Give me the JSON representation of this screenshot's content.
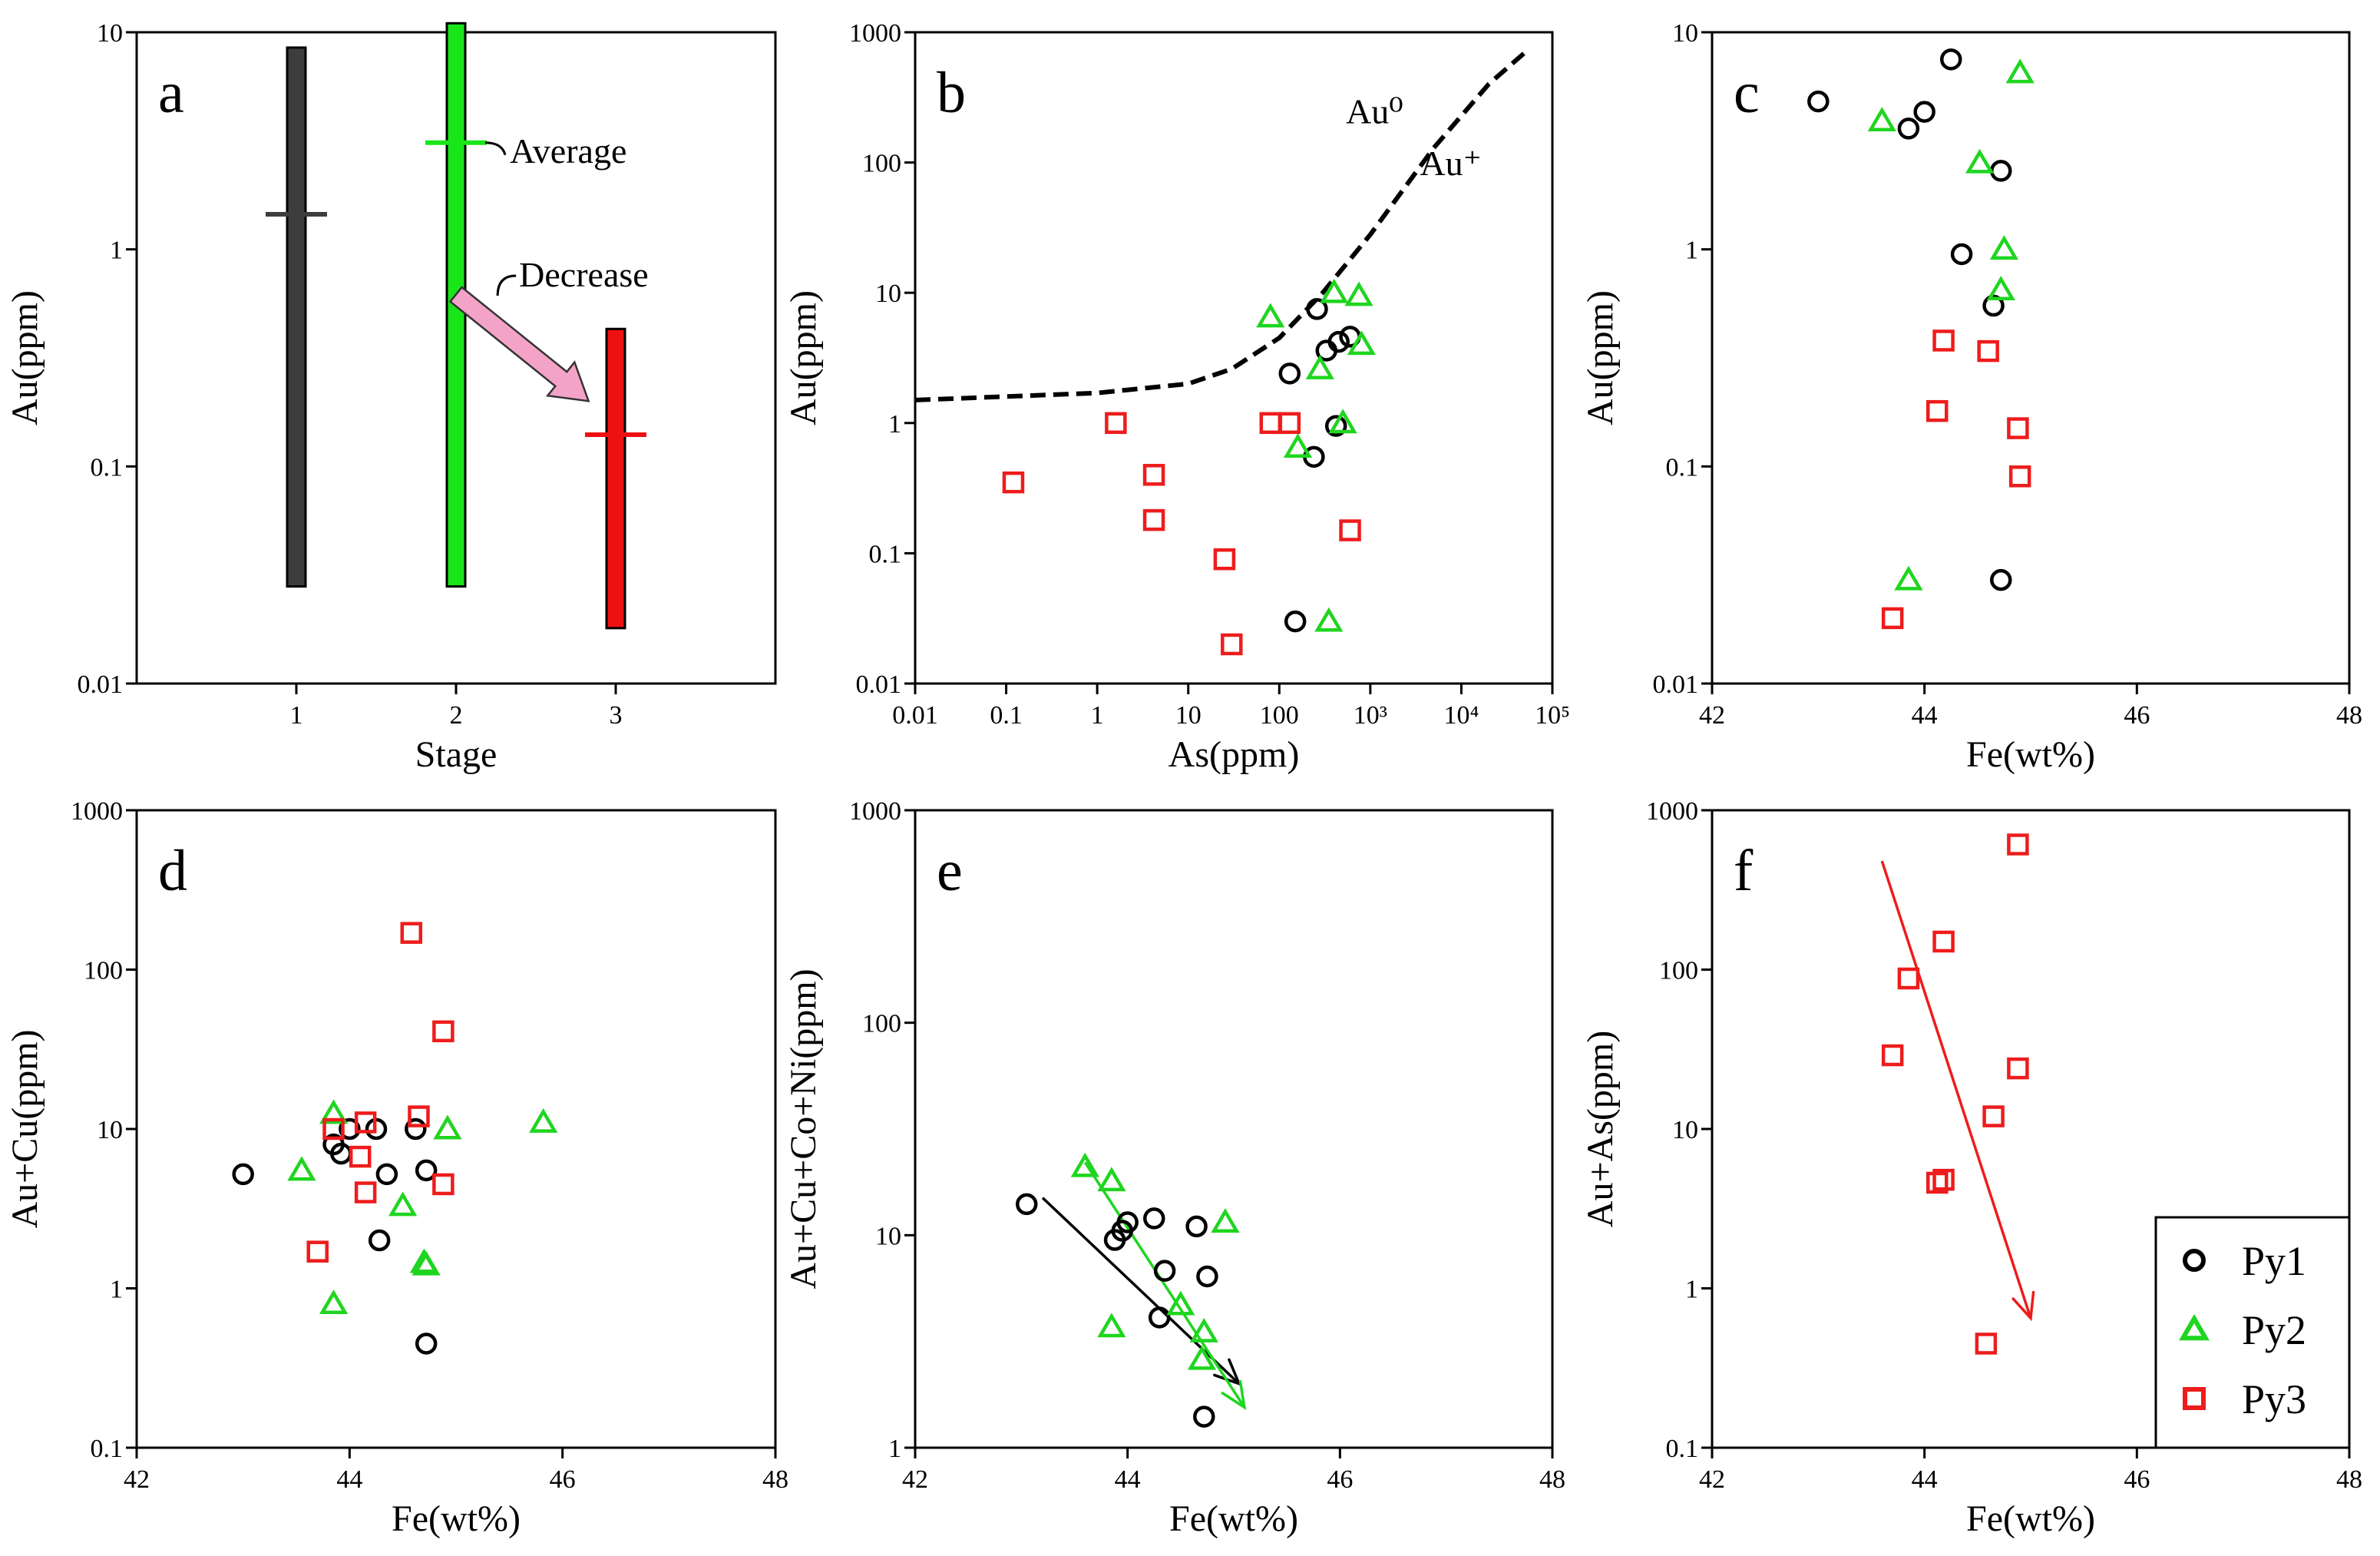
{
  "legend": {
    "position": "bottom-right",
    "entries": [
      {
        "label": "Py1",
        "marker": "circle",
        "color": "#000000"
      },
      {
        "label": "Py2",
        "marker": "triangle",
        "color": "#1fd51f"
      },
      {
        "label": "Py3",
        "marker": "square",
        "color": "#ee1c1c"
      }
    ]
  },
  "colors": {
    "py1": "#000000",
    "py2": "#1fd51f",
    "py3": "#ee1c1c",
    "stage1": "#3d3d3d",
    "stage2": "#19e619",
    "stage3": "#ee1111",
    "arrow_pink": "#f4a3c8",
    "axis": "#000000"
  },
  "chart_data": [
    {
      "id": "a",
      "panel_label": "a",
      "type": "bar",
      "xlabel": "Stage",
      "ylabel": "Au(ppm)",
      "yscale": "log",
      "ylim": [
        0.01,
        10
      ],
      "xlim": [
        0,
        4
      ],
      "xticks": [
        1,
        2,
        3
      ],
      "xtick_labels": [
        "1",
        "2",
        "3"
      ],
      "yticks": [
        0.01,
        0.1,
        1,
        10
      ],
      "ytick_labels": [
        "0.01",
        "0.1",
        "1",
        "10"
      ],
      "categories": [
        "1",
        "2",
        "3"
      ],
      "ranges": [
        {
          "stage": 1,
          "min": 0.028,
          "max": 8.5,
          "average": 1.45
        },
        {
          "stage": 2,
          "min": 0.028,
          "max": 11,
          "average": 3.1
        },
        {
          "stage": 3,
          "min": 0.018,
          "max": 0.43,
          "average": 0.14
        }
      ],
      "annotations": {
        "average": "Average",
        "decrease": "Decrease"
      }
    },
    {
      "id": "b",
      "panel_label": "b",
      "type": "scatter",
      "xlabel": "As(ppm)",
      "ylabel": "Au(ppm)",
      "xscale": "log",
      "yscale": "log",
      "xlim": [
        0.01,
        100000
      ],
      "ylim": [
        0.01,
        1000
      ],
      "xticks": [
        0.01,
        0.1,
        1,
        10,
        100,
        1000,
        10000,
        100000
      ],
      "xtick_labels": [
        "0.01",
        "0.1",
        "1",
        "10",
        "100",
        "10³",
        "10⁴",
        "10⁵"
      ],
      "yticks": [
        0.01,
        0.1,
        1,
        10,
        100,
        1000
      ],
      "ytick_labels": [
        "0.01",
        "0.1",
        "1",
        "10",
        "100",
        "1000"
      ],
      "curve": {
        "style": "dashed",
        "points": [
          [
            0.01,
            1.5
          ],
          [
            1,
            1.7
          ],
          [
            10,
            2.0
          ],
          [
            30,
            2.6
          ],
          [
            100,
            4.5
          ],
          [
            300,
            10
          ],
          [
            1000,
            28
          ],
          [
            5000,
            130
          ],
          [
            20000,
            400
          ],
          [
            50000,
            700
          ]
        ]
      },
      "curve_labels": {
        "upper": "Au⁰",
        "lower": "Au⁺"
      },
      "series": [
        {
          "name": "Py1",
          "x": [
            130,
            260,
            330,
            450,
            600,
            240,
            420,
            150
          ],
          "y": [
            2.4,
            7.5,
            3.6,
            4.2,
            4.6,
            0.55,
            0.95,
            0.03
          ]
        },
        {
          "name": "Py2",
          "x": [
            80,
            280,
            400,
            750,
            800,
            160,
            500,
            350
          ],
          "y": [
            6.5,
            2.6,
            10,
            9.5,
            4.0,
            0.65,
            1.0,
            0.03
          ]
        },
        {
          "name": "Py3",
          "x": [
            0.12,
            1.6,
            4.2,
            4.2,
            25,
            30,
            80,
            130,
            600
          ],
          "y": [
            0.35,
            1.0,
            0.4,
            0.18,
            0.09,
            0.02,
            1.0,
            1.0,
            0.15
          ]
        }
      ]
    },
    {
      "id": "c",
      "panel_label": "c",
      "type": "scatter",
      "xlabel": "Fe(wt%)",
      "ylabel": "Au(ppm)",
      "yscale": "log",
      "xlim": [
        42,
        48
      ],
      "ylim": [
        0.01,
        10
      ],
      "xticks": [
        42,
        44,
        46,
        48
      ],
      "xtick_labels": [
        "42",
        "44",
        "46",
        "48"
      ],
      "yticks": [
        0.01,
        0.1,
        1,
        10
      ],
      "ytick_labels": [
        "0.01",
        "0.1",
        "1",
        "10"
      ],
      "series": [
        {
          "name": "Py1",
          "x": [
            43.0,
            43.85,
            44.0,
            44.25,
            44.35,
            44.65,
            44.72,
            44.72
          ],
          "y": [
            4.8,
            3.6,
            4.3,
            7.5,
            0.95,
            0.55,
            2.3,
            0.03
          ]
        },
        {
          "name": "Py2",
          "x": [
            43.6,
            44.52,
            44.9,
            44.75,
            44.72,
            43.85
          ],
          "y": [
            3.9,
            2.5,
            6.5,
            1.0,
            0.65,
            0.03
          ]
        },
        {
          "name": "Py3",
          "x": [
            44.18,
            44.6,
            44.12,
            44.88,
            44.9,
            43.7
          ],
          "y": [
            0.38,
            0.34,
            0.18,
            0.15,
            0.09,
            0.02
          ]
        }
      ]
    },
    {
      "id": "d",
      "panel_label": "d",
      "type": "scatter",
      "xlabel": "Fe(wt%)",
      "ylabel": "Au+Cu(ppm)",
      "yscale": "log",
      "xlim": [
        42,
        48
      ],
      "ylim": [
        0.1,
        1000
      ],
      "xticks": [
        42,
        44,
        46,
        48
      ],
      "xtick_labels": [
        "42",
        "44",
        "46",
        "48"
      ],
      "yticks": [
        0.1,
        1,
        10,
        100,
        1000
      ],
      "ytick_labels": [
        "0.1",
        "1",
        "10",
        "100",
        "1000"
      ],
      "series": [
        {
          "name": "Py1",
          "x": [
            43.0,
            43.85,
            43.92,
            44.0,
            44.25,
            44.35,
            44.28,
            44.62,
            44.72,
            44.72
          ],
          "y": [
            5.2,
            8.0,
            7.0,
            10,
            10,
            5.2,
            2.0,
            10,
            5.5,
            0.45
          ]
        },
        {
          "name": "Py2",
          "x": [
            43.55,
            43.85,
            44.5,
            44.7,
            44.72,
            44.92,
            45.82,
            43.85
          ],
          "y": [
            5.5,
            12.5,
            3.3,
            1.45,
            1.4,
            10,
            11,
            0.8
          ]
        },
        {
          "name": "Py3",
          "x": [
            43.85,
            44.15,
            44.1,
            44.15,
            43.7,
            44.58,
            44.65,
            44.88,
            44.88
          ],
          "y": [
            10,
            11,
            6.7,
            4.0,
            1.7,
            170,
            12,
            41,
            4.5
          ]
        }
      ]
    },
    {
      "id": "e",
      "panel_label": "e",
      "type": "scatter",
      "xlabel": "Fe(wt%)",
      "ylabel": "Au+Cu+Co+Ni(ppm)",
      "yscale": "log",
      "xlim": [
        42,
        48
      ],
      "ylim": [
        1,
        1000
      ],
      "xticks": [
        42,
        44,
        46,
        48
      ],
      "xtick_labels": [
        "42",
        "44",
        "46",
        "48"
      ],
      "yticks": [
        1,
        10,
        100,
        1000
      ],
      "ytick_labels": [
        "1",
        "10",
        "100",
        "1000"
      ],
      "series": [
        {
          "name": "Py1",
          "x": [
            43.05,
            43.88,
            43.95,
            44.0,
            44.25,
            44.35,
            44.3,
            44.65,
            44.75,
            44.72
          ],
          "y": [
            14,
            9.5,
            10.5,
            11.5,
            12,
            6.8,
            4.1,
            11,
            6.4,
            1.4
          ]
        },
        {
          "name": "Py2",
          "x": [
            43.6,
            43.85,
            43.85,
            44.5,
            44.72,
            44.7,
            44.92
          ],
          "y": [
            21,
            18,
            3.7,
            4.7,
            3.5,
            2.6,
            11.5
          ]
        }
      ],
      "trend_arrows": [
        {
          "color": "black",
          "from": [
            43.2,
            15
          ],
          "to": [
            45.05,
            2.0
          ]
        },
        {
          "color": "green",
          "from": [
            43.6,
            22
          ],
          "to": [
            45.1,
            1.55
          ]
        }
      ]
    },
    {
      "id": "f",
      "panel_label": "f",
      "type": "scatter",
      "xlabel": "Fe(wt%)",
      "ylabel": "Au+As(ppm)",
      "yscale": "log",
      "xlim": [
        42,
        48
      ],
      "ylim": [
        0.1,
        1000
      ],
      "xticks": [
        42,
        44,
        46,
        48
      ],
      "xtick_labels": [
        "42",
        "44",
        "46",
        "48"
      ],
      "yticks": [
        0.1,
        1,
        10,
        100,
        1000
      ],
      "ytick_labels": [
        "0.1",
        "1",
        "10",
        "100",
        "1000"
      ],
      "series": [
        {
          "name": "Py3",
          "x": [
            44.88,
            44.18,
            43.85,
            43.7,
            44.88,
            44.65,
            44.18,
            44.12,
            44.58
          ],
          "y": [
            610,
            150,
            88,
            29,
            24,
            12,
            4.8,
            4.6,
            0.45
          ]
        }
      ],
      "trend_arrows": [
        {
          "color": "red",
          "from": [
            43.6,
            480
          ],
          "to": [
            45.0,
            0.65
          ]
        }
      ]
    }
  ]
}
